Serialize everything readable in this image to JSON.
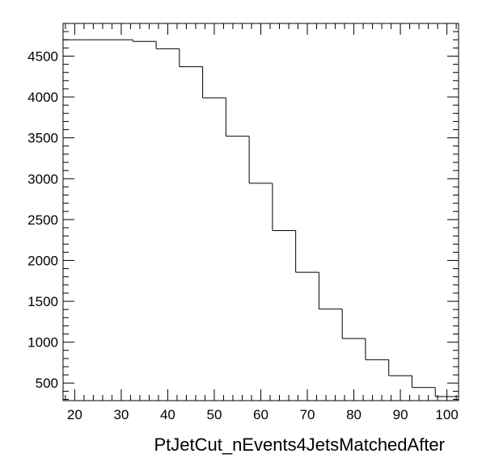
{
  "chart_data": {
    "type": "histogram",
    "title": "",
    "xlabel": "PtJetCut_nEvents4JetsMatchedAfter",
    "ylabel": "",
    "xlim": [
      17.5,
      102.5
    ],
    "ylim": [
      285,
      4900
    ],
    "bin_edges": [
      17.5,
      22.5,
      27.5,
      32.5,
      37.5,
      42.5,
      47.5,
      52.5,
      57.5,
      62.5,
      67.5,
      72.5,
      77.5,
      82.5,
      87.5,
      92.5,
      97.5,
      102.5
    ],
    "values": [
      4700,
      4700,
      4700,
      4680,
      4590,
      4370,
      3990,
      3520,
      2945,
      2365,
      1855,
      1405,
      1045,
      785,
      590,
      445,
      335
    ],
    "x_ticks": [
      20,
      30,
      40,
      50,
      60,
      70,
      80,
      90,
      100
    ],
    "y_ticks": [
      500,
      1000,
      1500,
      2000,
      2500,
      3000,
      3500,
      4000,
      4500
    ],
    "x_minor_step": 2,
    "y_minor_step": 100,
    "grid": false,
    "line_color": "#000000"
  }
}
